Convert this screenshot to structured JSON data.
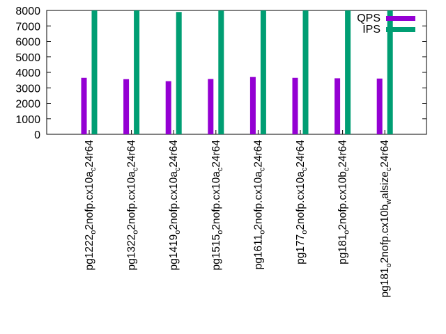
{
  "chart_data": {
    "type": "bar",
    "title": "",
    "xlabel": "",
    "ylabel": "",
    "ylim": [
      0,
      8000
    ],
    "yticks": [
      "0",
      "1000",
      "2000",
      "3000",
      "4000",
      "5000",
      "6000",
      "7000",
      "8000"
    ],
    "categories": [
      {
        "base": "pg1222",
        "sub1": "o",
        "mid": "2nofp.cx10a",
        "sub2": "c",
        "tail": "24r64"
      },
      {
        "base": "pg1322",
        "sub1": "o",
        "mid": "2nofp.cx10a",
        "sub2": "c",
        "tail": "24r64"
      },
      {
        "base": "pg1419",
        "sub1": "o",
        "mid": "2nofp.cx10a",
        "sub2": "c",
        "tail": "24r64"
      },
      {
        "base": "pg1515",
        "sub1": "o",
        "mid": "2nofp.cx10a",
        "sub2": "c",
        "tail": "24r64"
      },
      {
        "base": "pg1611",
        "sub1": "o",
        "mid": "2nofp.cx10a",
        "sub2": "c",
        "tail": "24r64"
      },
      {
        "base": "pg177",
        "sub1": "o",
        "mid": "2nofp.cx10a",
        "sub2": "c",
        "tail": "24r64"
      },
      {
        "base": "pg181",
        "sub1": "o",
        "mid": "2nofp.cx10b",
        "sub2": "c",
        "tail": "24r64"
      },
      {
        "base": "pg181",
        "sub1": "o",
        "mid": "2nofp.cx10b",
        "sub2": "w",
        "tail": "alsize",
        "sub3": "c",
        "tail2": "24r64"
      }
    ],
    "series": [
      {
        "name": "QPS",
        "color": "#9400d3",
        "values": [
          3650,
          3560,
          3430,
          3570,
          3700,
          3650,
          3620,
          3600
        ]
      },
      {
        "name": "IPS",
        "color": "#009e73",
        "values": [
          8000,
          8000,
          7900,
          8000,
          8000,
          8000,
          8000,
          8000
        ]
      }
    ],
    "grid": false,
    "legend": "top-right"
  }
}
